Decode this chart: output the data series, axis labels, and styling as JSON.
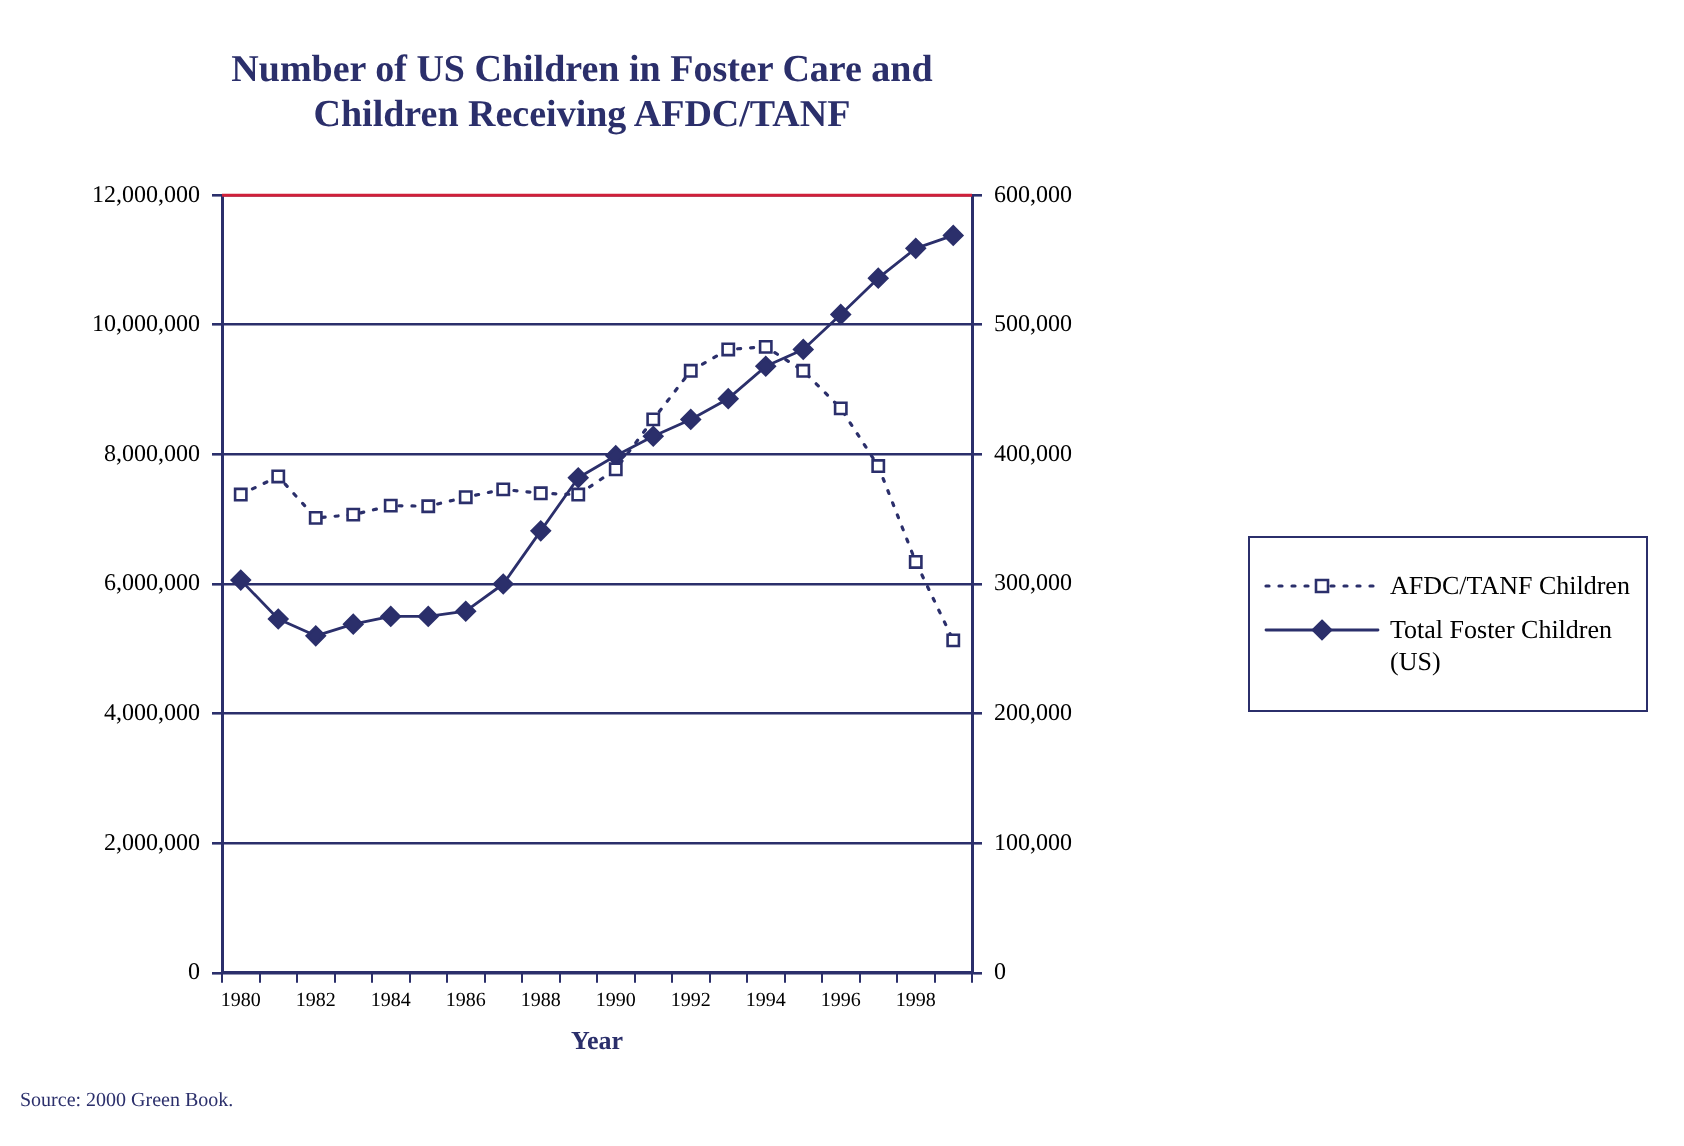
{
  "chart_data": {
    "type": "line",
    "title": [
      "Number of US Children in Foster Care and",
      "Children Receiving AFDC/TANF"
    ],
    "xlabel": "Year",
    "categories": [
      "1980",
      null,
      "1982",
      null,
      "1984",
      null,
      "1986",
      null,
      "1988",
      null,
      "1990",
      null,
      "1992",
      null,
      "1994",
      null,
      "1996",
      null,
      "1998",
      null
    ],
    "series": [
      {
        "name": "AFDC/TANF Children",
        "color": "#2b2f6b",
        "marker": "square",
        "line_style": "dotted",
        "values": [
          7380000,
          7660000,
          7020000,
          7070000,
          7210000,
          7200000,
          7340000,
          7460000,
          7400000,
          7380000,
          7770000,
          8540000,
          9290000,
          9620000,
          9660000,
          9290000,
          8710000,
          7820000,
          6340000,
          5130000
        ]
      },
      {
        "name": "Total Foster Children (US)",
        "color": "#2b2f6b",
        "marker": "diamond",
        "line_style": "solid",
        "axis": "y2",
        "values": [
          303000,
          273000,
          260000,
          269000,
          275000,
          275000,
          279000,
          300000,
          341000,
          382000,
          399000,
          414000,
          427000,
          443000,
          468000,
          481000,
          508000,
          536000,
          559000,
          569000
        ]
      }
    ],
    "ylim": [
      0,
      12000000
    ],
    "yticks": [
      {
        "value": 0,
        "label": "0"
      },
      {
        "value": 2000000,
        "label": "2,000,000"
      },
      {
        "value": 4000000,
        "label": "4,000,000"
      },
      {
        "value": 6000000,
        "label": "6,000,000"
      },
      {
        "value": 8000000,
        "label": "8,000,000"
      },
      {
        "value": 10000000,
        "label": "10,000,000"
      },
      {
        "value": 12000000,
        "label": "12,000,000"
      }
    ],
    "y2lim": [
      0,
      600000
    ],
    "y2ticks": [
      {
        "value": 0,
        "label": "0"
      },
      {
        "value": 100000,
        "label": "100,000"
      },
      {
        "value": 200000,
        "label": "200,000"
      },
      {
        "value": 300000,
        "label": "300,000"
      },
      {
        "value": 400000,
        "label": "400,000"
      },
      {
        "value": 500000,
        "label": "500,000"
      },
      {
        "value": 600000,
        "label": "600,000"
      }
    ],
    "ref_lines": [
      {
        "axis": "y",
        "value": 12000000,
        "color": "#d0203a"
      }
    ],
    "grid": "y",
    "legend": "right",
    "annotations": [
      "Source: 2000 Green Book."
    ]
  }
}
